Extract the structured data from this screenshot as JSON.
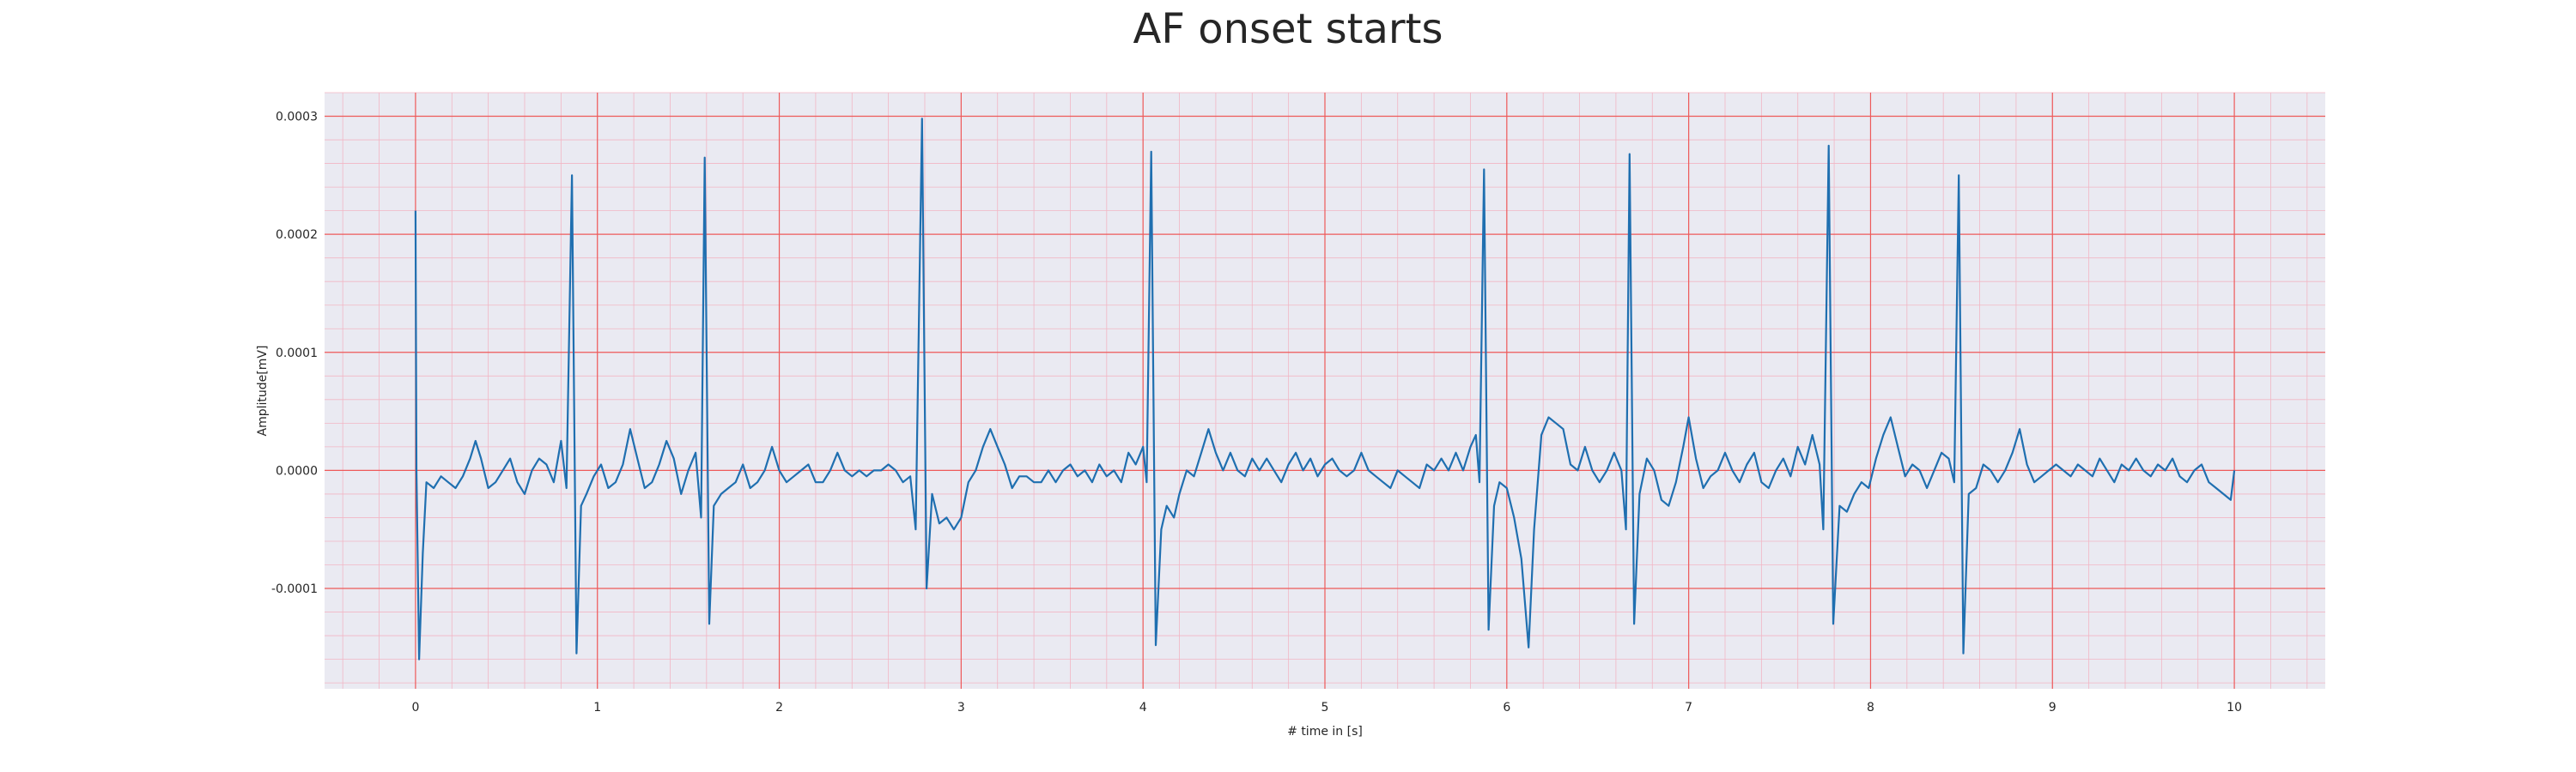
{
  "chart_data": {
    "type": "line",
    "title": "AF onset starts",
    "xlabel": "# time in [s]",
    "ylabel": "Amplitude[mV]",
    "xlim": [
      -0.5,
      10.5
    ],
    "ylim": [
      -0.000185,
      0.00032
    ],
    "x_ticks": [
      0,
      1,
      2,
      3,
      4,
      5,
      6,
      7,
      8,
      9,
      10
    ],
    "x_tick_labels": [
      "0",
      "1",
      "2",
      "3",
      "4",
      "5",
      "6",
      "7",
      "8",
      "9",
      "10"
    ],
    "y_ticks": [
      -0.0001,
      0.0,
      0.0001,
      0.0002,
      0.0003
    ],
    "y_tick_labels": [
      "-0.0001",
      "0.0000",
      "0.0001",
      "0.0002",
      "0.0003"
    ],
    "grid": true,
    "minor_grid": true,
    "colors": {
      "line": "#1f6fb0",
      "major_grid": "#ee5a5a",
      "minor_grid": "#f2b6c4",
      "plot_background": "#eaeaf2"
    },
    "series": [
      {
        "values": [
          [
            0.0,
            0.00022
          ],
          [
            0.005,
            0.0
          ],
          [
            0.02,
            -0.00016
          ],
          [
            0.04,
            -7e-05
          ],
          [
            0.06,
            -1e-05
          ],
          [
            0.1,
            -1.5e-05
          ],
          [
            0.14,
            -5e-06
          ],
          [
            0.18,
            -1e-05
          ],
          [
            0.22,
            -1.5e-05
          ],
          [
            0.26,
            -5e-06
          ],
          [
            0.3,
            1e-05
          ],
          [
            0.33,
            2.5e-05
          ],
          [
            0.36,
            1e-05
          ],
          [
            0.4,
            -1.5e-05
          ],
          [
            0.44,
            -1e-05
          ],
          [
            0.48,
            0.0
          ],
          [
            0.52,
            1e-05
          ],
          [
            0.56,
            -1e-05
          ],
          [
            0.6,
            -2e-05
          ],
          [
            0.64,
            0.0
          ],
          [
            0.68,
            1e-05
          ],
          [
            0.72,
            5e-06
          ],
          [
            0.76,
            -1e-05
          ],
          [
            0.8,
            2.5e-05
          ],
          [
            0.83,
            -1.5e-05
          ],
          [
            0.86,
            0.00025
          ],
          [
            0.885,
            -0.000155
          ],
          [
            0.91,
            -3e-05
          ],
          [
            0.94,
            -2e-05
          ],
          [
            0.98,
            -5e-06
          ],
          [
            1.02,
            5e-06
          ],
          [
            1.06,
            -1.5e-05
          ],
          [
            1.1,
            -1e-05
          ],
          [
            1.14,
            5e-06
          ],
          [
            1.18,
            3.5e-05
          ],
          [
            1.22,
            1e-05
          ],
          [
            1.26,
            -1.5e-05
          ],
          [
            1.3,
            -1e-05
          ],
          [
            1.34,
            5e-06
          ],
          [
            1.38,
            2.5e-05
          ],
          [
            1.42,
            1e-05
          ],
          [
            1.46,
            -2e-05
          ],
          [
            1.5,
            0.0
          ],
          [
            1.54,
            1.5e-05
          ],
          [
            1.57,
            -4e-05
          ],
          [
            1.59,
            0.000265
          ],
          [
            1.615,
            -0.00013
          ],
          [
            1.64,
            -3e-05
          ],
          [
            1.68,
            -2e-05
          ],
          [
            1.72,
            -1.5e-05
          ],
          [
            1.76,
            -1e-05
          ],
          [
            1.8,
            5e-06
          ],
          [
            1.84,
            -1.5e-05
          ],
          [
            1.88,
            -1e-05
          ],
          [
            1.92,
            0.0
          ],
          [
            1.96,
            2e-05
          ],
          [
            2.0,
            0.0
          ],
          [
            2.04,
            -1e-05
          ],
          [
            2.08,
            -5e-06
          ],
          [
            2.12,
            0.0
          ],
          [
            2.16,
            5e-06
          ],
          [
            2.2,
            -1e-05
          ],
          [
            2.24,
            -1e-05
          ],
          [
            2.28,
            0.0
          ],
          [
            2.32,
            1.5e-05
          ],
          [
            2.36,
            0.0
          ],
          [
            2.4,
            -5e-06
          ],
          [
            2.44,
            0.0
          ],
          [
            2.48,
            -5e-06
          ],
          [
            2.52,
            0.0
          ],
          [
            2.56,
            0.0
          ],
          [
            2.6,
            5e-06
          ],
          [
            2.64,
            0.0
          ],
          [
            2.68,
            -1e-05
          ],
          [
            2.72,
            -5e-06
          ],
          [
            2.75,
            -5e-05
          ],
          [
            2.785,
            0.000298
          ],
          [
            2.81,
            -0.0001
          ],
          [
            2.84,
            -2e-05
          ],
          [
            2.88,
            -4.5e-05
          ],
          [
            2.92,
            -4e-05
          ],
          [
            2.96,
            -5e-05
          ],
          [
            3.0,
            -4e-05
          ],
          [
            3.04,
            -1e-05
          ],
          [
            3.08,
            0.0
          ],
          [
            3.12,
            2e-05
          ],
          [
            3.16,
            3.5e-05
          ],
          [
            3.2,
            2e-05
          ],
          [
            3.24,
            5e-06
          ],
          [
            3.28,
            -1.5e-05
          ],
          [
            3.32,
            -5e-06
          ],
          [
            3.36,
            -5e-06
          ],
          [
            3.4,
            -1e-05
          ],
          [
            3.44,
            -1e-05
          ],
          [
            3.48,
            0.0
          ],
          [
            3.52,
            -1e-05
          ],
          [
            3.56,
            0.0
          ],
          [
            3.6,
            5e-06
          ],
          [
            3.64,
            -5e-06
          ],
          [
            3.68,
            0.0
          ],
          [
            3.72,
            -1e-05
          ],
          [
            3.76,
            5e-06
          ],
          [
            3.8,
            -5e-06
          ],
          [
            3.84,
            0.0
          ],
          [
            3.88,
            -1e-05
          ],
          [
            3.92,
            1.5e-05
          ],
          [
            3.96,
            5e-06
          ],
          [
            4.0,
            2e-05
          ],
          [
            4.02,
            -1e-05
          ],
          [
            4.045,
            0.00027
          ],
          [
            4.07,
            -0.000148
          ],
          [
            4.1,
            -5e-05
          ],
          [
            4.13,
            -3e-05
          ],
          [
            4.17,
            -4e-05
          ],
          [
            4.2,
            -2e-05
          ],
          [
            4.24,
            0.0
          ],
          [
            4.28,
            -5e-06
          ],
          [
            4.32,
            1.5e-05
          ],
          [
            4.36,
            3.5e-05
          ],
          [
            4.4,
            1.5e-05
          ],
          [
            4.44,
            0.0
          ],
          [
            4.48,
            1.5e-05
          ],
          [
            4.52,
            0.0
          ],
          [
            4.56,
            -5e-06
          ],
          [
            4.6,
            1e-05
          ],
          [
            4.64,
            0.0
          ],
          [
            4.68,
            1e-05
          ],
          [
            4.72,
            0.0
          ],
          [
            4.76,
            -1e-05
          ],
          [
            4.8,
            5e-06
          ],
          [
            4.84,
            1.5e-05
          ],
          [
            4.88,
            0.0
          ],
          [
            4.92,
            1e-05
          ],
          [
            4.96,
            -5e-06
          ],
          [
            5.0,
            5e-06
          ],
          [
            5.04,
            1e-05
          ],
          [
            5.08,
            0.0
          ],
          [
            5.12,
            -5e-06
          ],
          [
            5.16,
            0.0
          ],
          [
            5.2,
            1.5e-05
          ],
          [
            5.24,
            0.0
          ],
          [
            5.28,
            -5e-06
          ],
          [
            5.32,
            -1e-05
          ],
          [
            5.36,
            -1.5e-05
          ],
          [
            5.4,
            0.0
          ],
          [
            5.44,
            -5e-06
          ],
          [
            5.48,
            -1e-05
          ],
          [
            5.52,
            -1.5e-05
          ],
          [
            5.56,
            5e-06
          ],
          [
            5.6,
            0.0
          ],
          [
            5.64,
            1e-05
          ],
          [
            5.68,
            0.0
          ],
          [
            5.72,
            1.5e-05
          ],
          [
            5.76,
            0.0
          ],
          [
            5.8,
            2e-05
          ],
          [
            5.83,
            3e-05
          ],
          [
            5.85,
            -1e-05
          ],
          [
            5.875,
            0.000255
          ],
          [
            5.9,
            -0.000135
          ],
          [
            5.93,
            -3e-05
          ],
          [
            5.96,
            -1e-05
          ],
          [
            6.0,
            -1.5e-05
          ],
          [
            6.04,
            -4e-05
          ],
          [
            6.08,
            -7.5e-05
          ],
          [
            6.12,
            -0.00015
          ],
          [
            6.15,
            -5e-05
          ],
          [
            6.19,
            3e-05
          ],
          [
            6.23,
            4.5e-05
          ],
          [
            6.27,
            4e-05
          ],
          [
            6.31,
            3.5e-05
          ],
          [
            6.35,
            5e-06
          ],
          [
            6.39,
            0.0
          ],
          [
            6.43,
            2e-05
          ],
          [
            6.47,
            0.0
          ],
          [
            6.51,
            -1e-05
          ],
          [
            6.55,
            0.0
          ],
          [
            6.59,
            1.5e-05
          ],
          [
            6.63,
            0.0
          ],
          [
            6.655,
            -5e-05
          ],
          [
            6.675,
            0.000268
          ],
          [
            6.7,
            -0.00013
          ],
          [
            6.73,
            -2e-05
          ],
          [
            6.77,
            1e-05
          ],
          [
            6.81,
            0.0
          ],
          [
            6.85,
            -2.5e-05
          ],
          [
            6.89,
            -3e-05
          ],
          [
            6.93,
            -1e-05
          ],
          [
            6.97,
            2e-05
          ],
          [
            7.0,
            4.5e-05
          ],
          [
            7.04,
            1e-05
          ],
          [
            7.08,
            -1.5e-05
          ],
          [
            7.12,
            -5e-06
          ],
          [
            7.16,
            0.0
          ],
          [
            7.2,
            1.5e-05
          ],
          [
            7.24,
            0.0
          ],
          [
            7.28,
            -1e-05
          ],
          [
            7.32,
            5e-06
          ],
          [
            7.36,
            1.5e-05
          ],
          [
            7.4,
            -1e-05
          ],
          [
            7.44,
            -1.5e-05
          ],
          [
            7.48,
            0.0
          ],
          [
            7.52,
            1e-05
          ],
          [
            7.56,
            -5e-06
          ],
          [
            7.6,
            2e-05
          ],
          [
            7.64,
            5e-06
          ],
          [
            7.68,
            3e-05
          ],
          [
            7.72,
            5e-06
          ],
          [
            7.74,
            -5e-05
          ],
          [
            7.77,
            0.000275
          ],
          [
            7.795,
            -0.00013
          ],
          [
            7.83,
            -3e-05
          ],
          [
            7.87,
            -3.5e-05
          ],
          [
            7.91,
            -2e-05
          ],
          [
            7.95,
            -1e-05
          ],
          [
            7.99,
            -1.5e-05
          ],
          [
            8.03,
            1e-05
          ],
          [
            8.07,
            3e-05
          ],
          [
            8.11,
            4.5e-05
          ],
          [
            8.15,
            2e-05
          ],
          [
            8.19,
            -5e-06
          ],
          [
            8.23,
            5e-06
          ],
          [
            8.27,
            0.0
          ],
          [
            8.31,
            -1.5e-05
          ],
          [
            8.35,
            0.0
          ],
          [
            8.39,
            1.5e-05
          ],
          [
            8.43,
            1e-05
          ],
          [
            8.46,
            -1e-05
          ],
          [
            8.485,
            0.00025
          ],
          [
            8.51,
            -0.000155
          ],
          [
            8.54,
            -2e-05
          ],
          [
            8.58,
            -1.5e-05
          ],
          [
            8.62,
            5e-06
          ],
          [
            8.66,
            0.0
          ],
          [
            8.7,
            -1e-05
          ],
          [
            8.74,
            0.0
          ],
          [
            8.78,
            1.5e-05
          ],
          [
            8.82,
            3.5e-05
          ],
          [
            8.86,
            5e-06
          ],
          [
            8.9,
            -1e-05
          ],
          [
            8.94,
            -5e-06
          ],
          [
            8.98,
            0.0
          ],
          [
            9.02,
            5e-06
          ],
          [
            9.06,
            0.0
          ],
          [
            9.1,
            -5e-06
          ],
          [
            9.14,
            5e-06
          ],
          [
            9.18,
            0.0
          ],
          [
            9.22,
            -5e-06
          ],
          [
            9.26,
            1e-05
          ],
          [
            9.3,
            0.0
          ],
          [
            9.34,
            -1e-05
          ],
          [
            9.38,
            5e-06
          ],
          [
            9.42,
            0.0
          ],
          [
            9.46,
            1e-05
          ],
          [
            9.5,
            0.0
          ],
          [
            9.54,
            -5e-06
          ],
          [
            9.58,
            5e-06
          ],
          [
            9.62,
            0.0
          ],
          [
            9.66,
            1e-05
          ],
          [
            9.7,
            -5e-06
          ],
          [
            9.74,
            -1e-05
          ],
          [
            9.78,
            0.0
          ],
          [
            9.82,
            5e-06
          ],
          [
            9.86,
            -1e-05
          ],
          [
            9.9,
            -1.5e-05
          ],
          [
            9.94,
            -2e-05
          ],
          [
            9.98,
            -2.5e-05
          ],
          [
            10.0,
            0.0
          ]
        ]
      }
    ]
  }
}
